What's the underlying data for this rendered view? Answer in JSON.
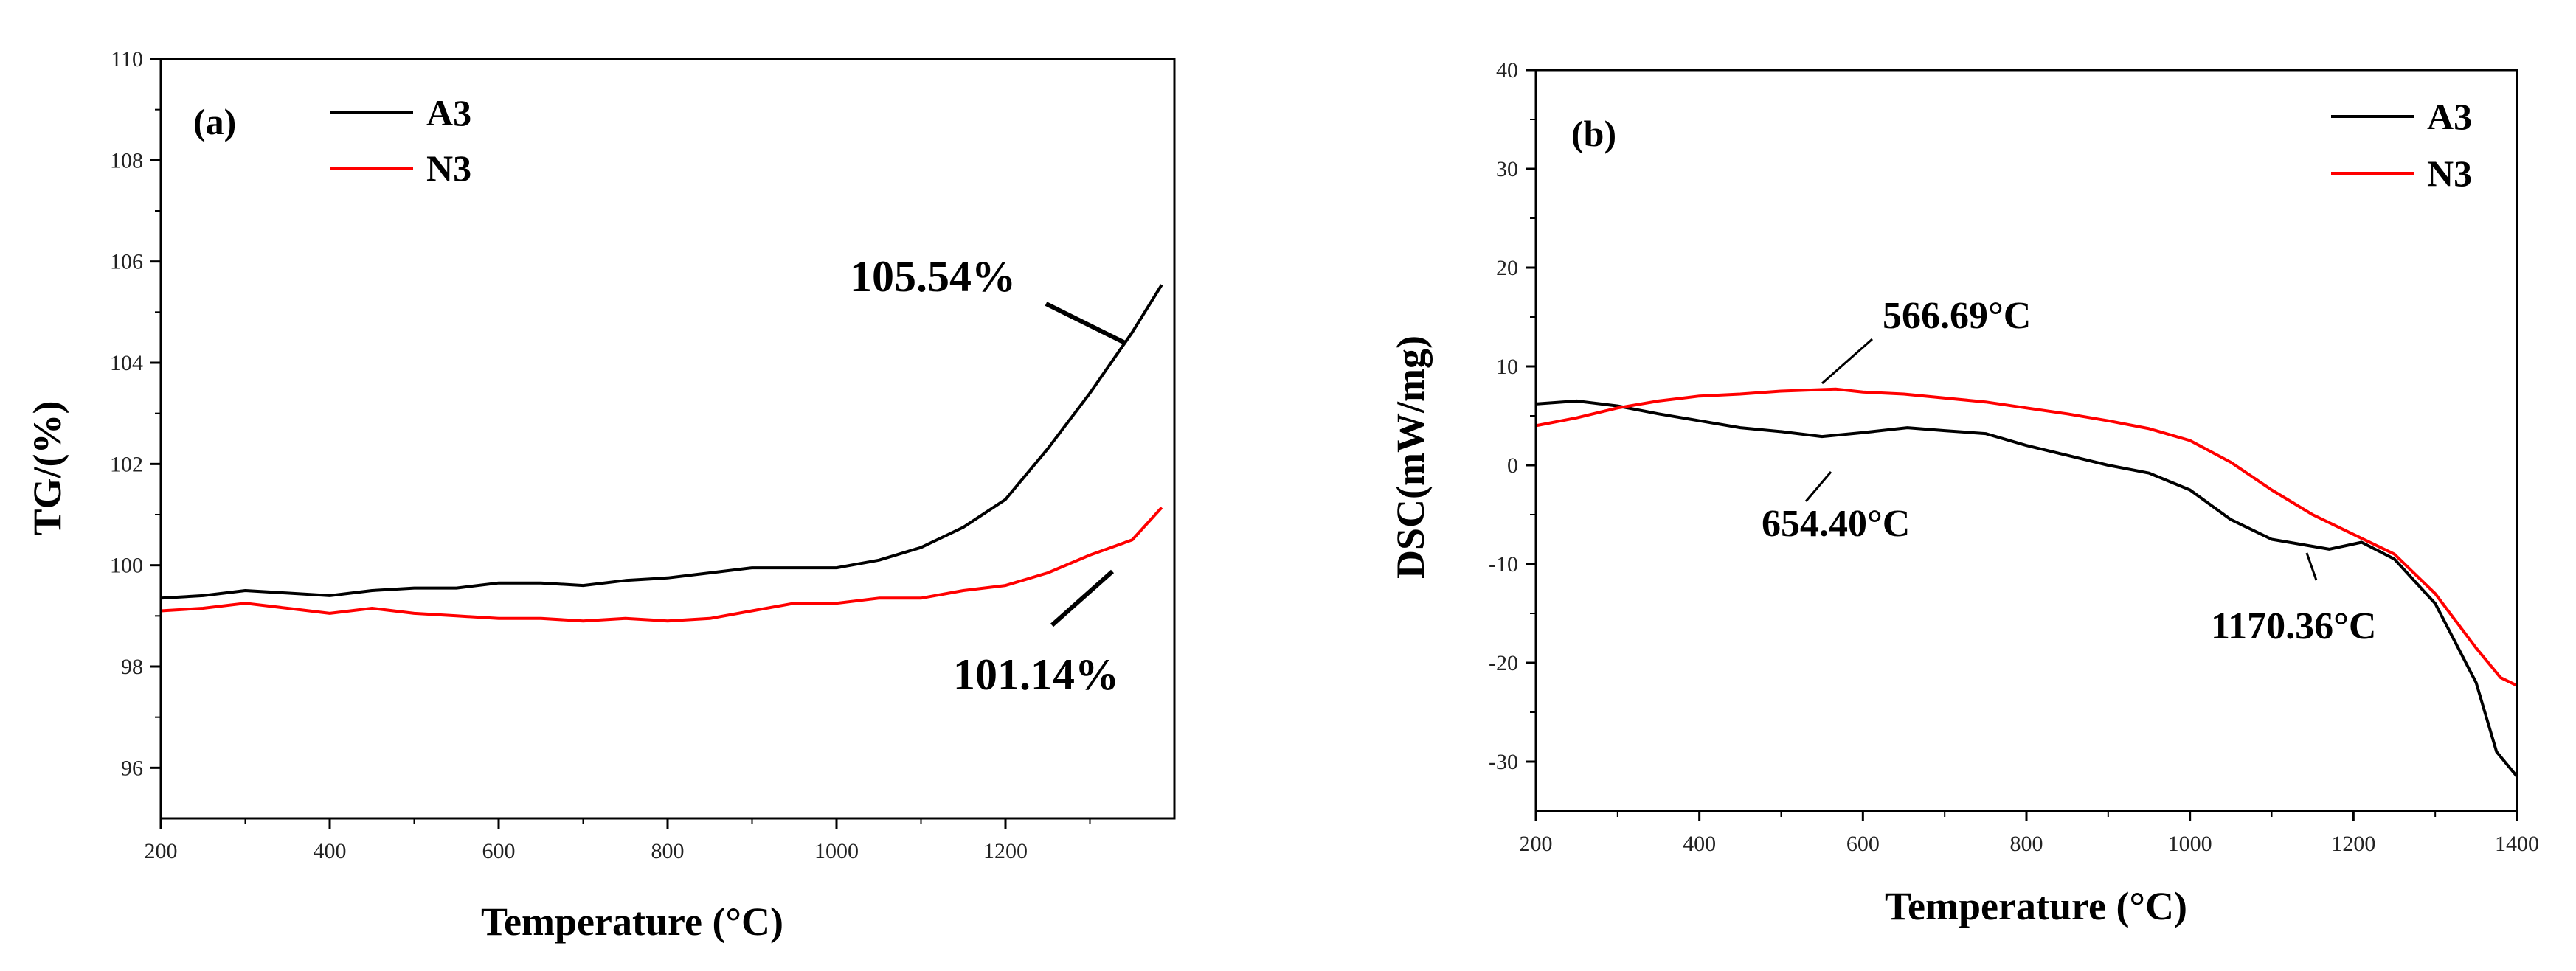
{
  "colors": {
    "A3": "#000000",
    "N3": "#ff0000"
  },
  "chart_data": [
    {
      "type": "line",
      "panel_label": "(a)",
      "xlabel": "Temperature (°C)",
      "ylabel": "TG/(%)",
      "xlim": [
        200,
        1400
      ],
      "ylim": [
        95,
        110
      ],
      "x_ticks": [
        "200",
        "400",
        "600",
        "800",
        "1000",
        "1200"
      ],
      "y_ticks": [
        "96",
        "98",
        "100",
        "102",
        "104",
        "106",
        "108",
        "110"
      ],
      "legend": [
        "A3",
        "N3"
      ],
      "series": [
        {
          "name": "A3",
          "x": [
            200,
            250,
            300,
            350,
            400,
            450,
            500,
            550,
            600,
            650,
            700,
            750,
            800,
            850,
            900,
            950,
            1000,
            1050,
            1100,
            1150,
            1200,
            1250,
            1300,
            1350,
            1385
          ],
          "y": [
            99.35,
            99.4,
            99.5,
            99.45,
            99.4,
            99.5,
            99.55,
            99.55,
            99.65,
            99.65,
            99.6,
            99.7,
            99.75,
            99.85,
            99.95,
            99.95,
            99.95,
            100.1,
            100.35,
            100.75,
            101.3,
            102.3,
            103.4,
            104.6,
            105.54
          ]
        },
        {
          "name": "N3",
          "x": [
            200,
            250,
            300,
            350,
            400,
            450,
            500,
            550,
            600,
            650,
            700,
            750,
            800,
            850,
            900,
            950,
            1000,
            1050,
            1100,
            1150,
            1200,
            1250,
            1300,
            1350,
            1385
          ],
          "y": [
            99.1,
            99.15,
            99.25,
            99.15,
            99.05,
            99.15,
            99.05,
            99.0,
            98.95,
            98.95,
            98.9,
            98.95,
            98.9,
            98.95,
            99.1,
            99.25,
            99.25,
            99.35,
            99.35,
            99.5,
            99.6,
            99.85,
            100.2,
            100.5,
            101.14
          ]
        }
      ],
      "annotations": [
        "105.54%",
        "101.14%"
      ]
    },
    {
      "type": "line",
      "panel_label": "(b)",
      "xlabel": "Temperature (°C)",
      "ylabel": "DSC(mW/mg)",
      "xlim": [
        200,
        1400
      ],
      "ylim": [
        -35,
        40
      ],
      "x_ticks": [
        "200",
        "400",
        "600",
        "800",
        "1000",
        "1200",
        "1400"
      ],
      "y_ticks": [
        "-30",
        "-20",
        "-10",
        "0",
        "10",
        "20",
        "30",
        "40"
      ],
      "legend": [
        "A3",
        "N3"
      ],
      "series": [
        {
          "name": "A3",
          "x": [
            200,
            250,
            300,
            350,
            400,
            450,
            500,
            550,
            600,
            654.4,
            700,
            750,
            800,
            850,
            900,
            950,
            1000,
            1050,
            1100,
            1170.36,
            1210,
            1250,
            1300,
            1350,
            1375,
            1400
          ],
          "y": [
            6.2,
            6.5,
            6.0,
            5.2,
            4.5,
            3.8,
            3.4,
            2.9,
            3.3,
            3.8,
            3.5,
            3.2,
            2.0,
            1.0,
            0.0,
            -0.8,
            -2.5,
            -5.5,
            -7.5,
            -8.5,
            -7.8,
            -9.5,
            -14.0,
            -22.0,
            -29.0,
            -31.5
          ]
        },
        {
          "name": "N3",
          "x": [
            200,
            250,
            300,
            350,
            400,
            450,
            500,
            566.69,
            600,
            650,
            700,
            750,
            800,
            850,
            900,
            950,
            1000,
            1050,
            1100,
            1150,
            1200,
            1250,
            1300,
            1350,
            1380,
            1400
          ],
          "y": [
            4.0,
            4.8,
            5.8,
            6.5,
            7.0,
            7.2,
            7.5,
            7.7,
            7.4,
            7.2,
            6.8,
            6.4,
            5.8,
            5.2,
            4.5,
            3.7,
            2.5,
            0.3,
            -2.5,
            -5.0,
            -7.0,
            -9.0,
            -13.0,
            -18.5,
            -21.5,
            -22.3
          ]
        }
      ],
      "annotations": [
        "566.69°C",
        "654.40°C",
        "1170.36°C"
      ]
    }
  ]
}
